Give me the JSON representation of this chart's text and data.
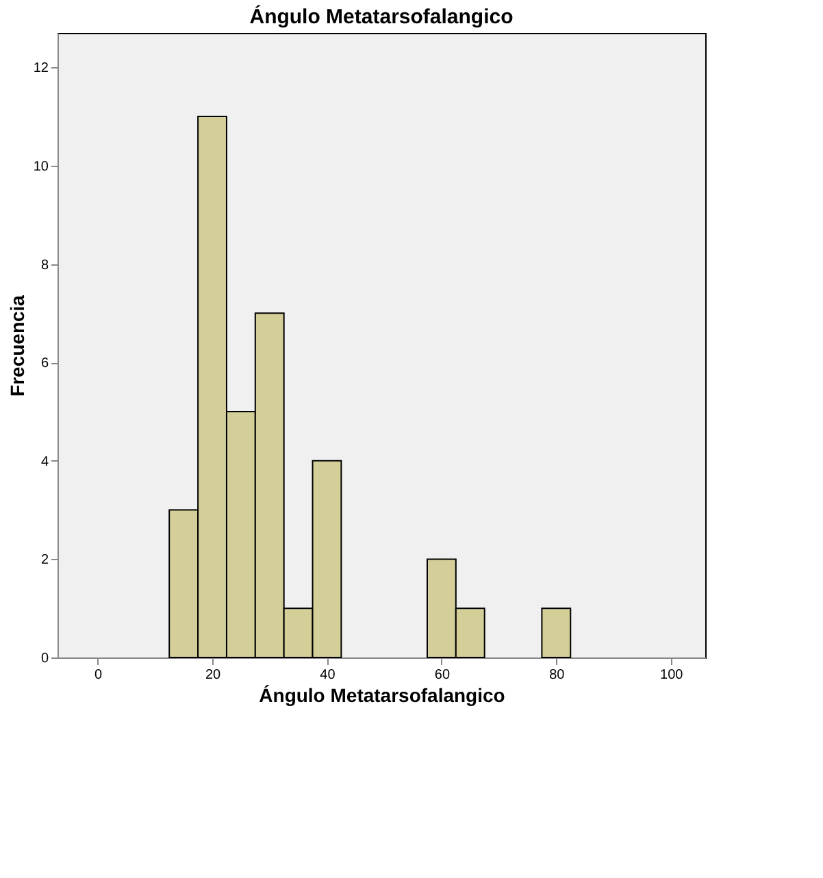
{
  "chart_data": {
    "type": "histogram",
    "title": "Ángulo Metatarsofalangico",
    "xlabel": "Ángulo Metatarsofalangico",
    "ylabel": "Frecuencia",
    "bins": [
      12.5,
      17.5,
      22.5,
      27.5,
      32.5,
      37.5,
      42.5,
      47.5,
      52.5,
      57.5,
      62.5,
      67.5,
      72.5,
      77.5,
      82.5
    ],
    "values": [
      3,
      11,
      5,
      7,
      1,
      4,
      0,
      0,
      0,
      2,
      1,
      0,
      0,
      1
    ],
    "color": "#d4cf98",
    "xlim": [
      -7,
      106
    ],
    "xticks": [
      0,
      20,
      40,
      60,
      80,
      100
    ],
    "ylim": [
      0,
      12.7
    ],
    "yticks": [
      0,
      2,
      4,
      6,
      8,
      10,
      12
    ],
    "grid": false
  }
}
